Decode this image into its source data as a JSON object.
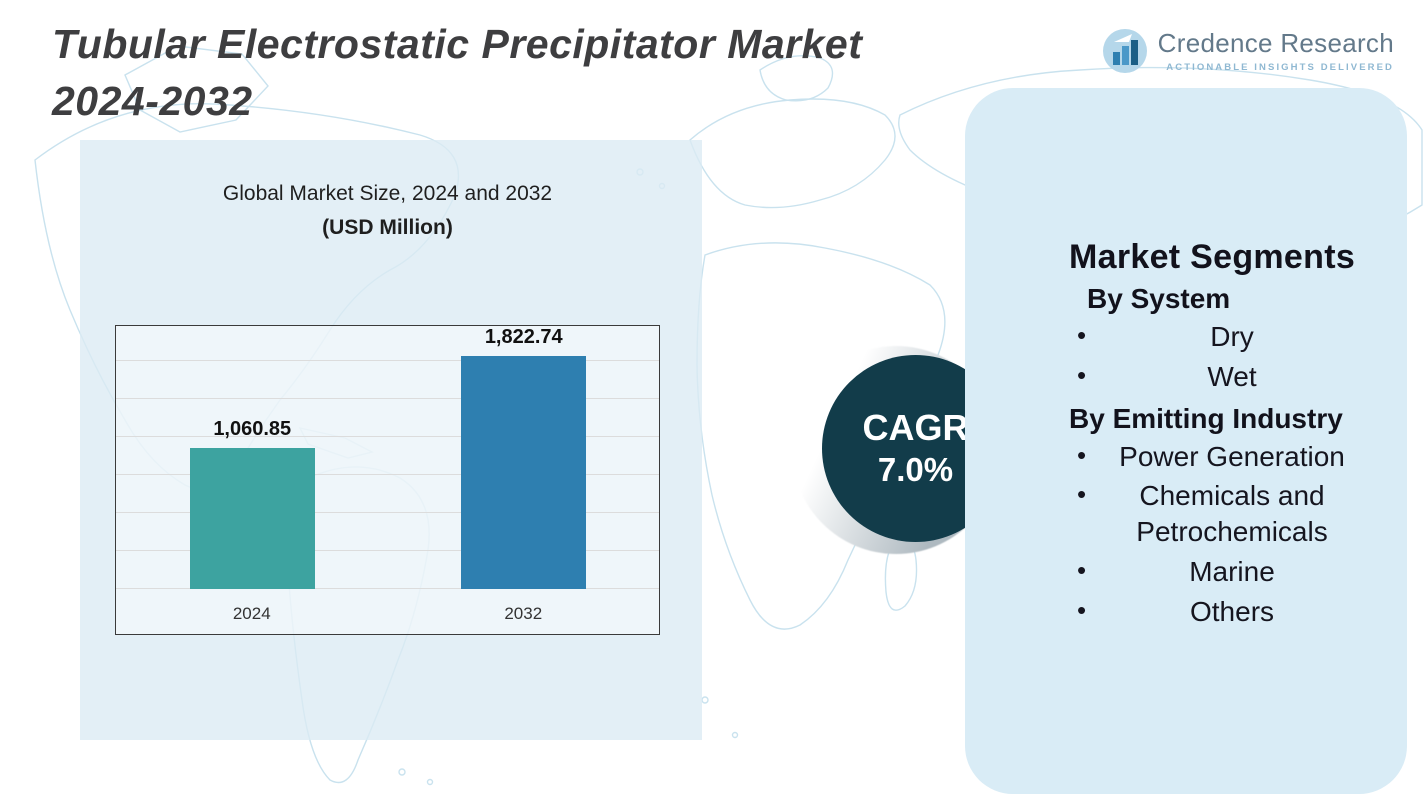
{
  "header": {
    "title_line1": "Tubular Electrostatic Precipitator Market",
    "title_line2": "2024-2032"
  },
  "logo": {
    "brand": "Credence Research",
    "tagline": "Actionable Insights Delivered"
  },
  "chart_data": {
    "type": "bar",
    "title": "Global Market Size, 2024 and 2032",
    "subtitle": "(USD Million)",
    "categories": [
      "2024",
      "2032"
    ],
    "values": [
      1060.85,
      1822.74
    ],
    "value_labels": [
      "1,060.85",
      "1,822.74"
    ],
    "bar_colors": [
      "#3da3a0",
      "#2e7fb0"
    ],
    "xlabel": "",
    "ylabel": "",
    "ylim": [
      0,
      2000
    ],
    "grid": true,
    "legend": false
  },
  "cagr": {
    "label": "CAGR",
    "value": "7.0%"
  },
  "segments": {
    "heading": "Market Segments",
    "groups": [
      {
        "title": "By System",
        "items": [
          "Dry",
          "Wet"
        ]
      },
      {
        "title": "By Emitting Industry",
        "items": [
          "Power Generation",
          "Chemicals and Petrochemicals",
          "Marine",
          "Others"
        ]
      }
    ]
  },
  "colors": {
    "left_panel": "#dbebf4",
    "segments_panel": "#d9ecf6",
    "cagr_circle": "#123c4a",
    "bar_2024": "#3da3a0",
    "bar_2032": "#2e7fb0",
    "title_text": "#3e3e40",
    "map_outline": "#c9e2ee"
  },
  "bullet_char": "•"
}
